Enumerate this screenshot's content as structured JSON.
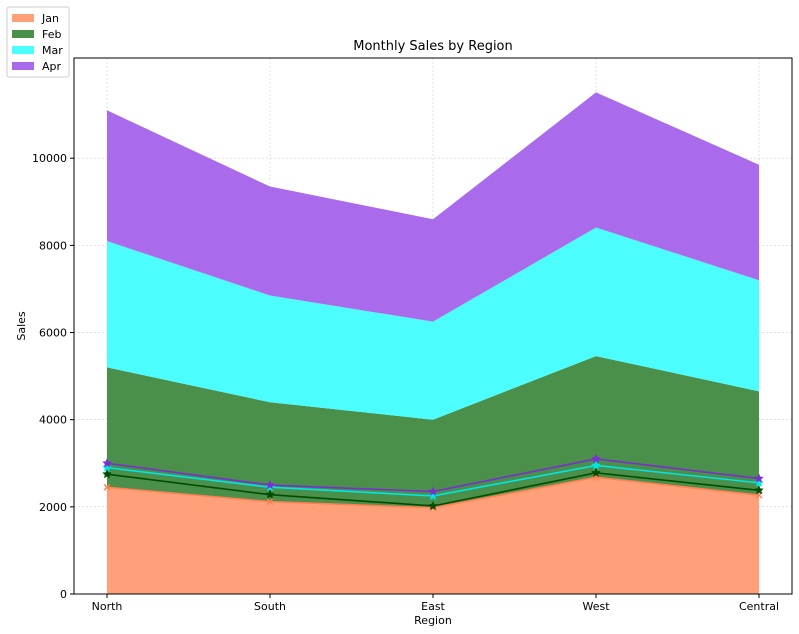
{
  "chart_data": {
    "type": "area",
    "stacked": true,
    "title": "Monthly Sales by Region",
    "xlabel": "Region",
    "ylabel": "Sales",
    "categories": [
      "North",
      "South",
      "East",
      "West",
      "Central"
    ],
    "ylim": [
      0,
      12300
    ],
    "yticks": [
      0,
      2000,
      4000,
      6000,
      8000,
      10000
    ],
    "ytick_labels": [
      "0",
      "2000",
      "4000",
      "6000",
      "8000",
      "10000"
    ],
    "grid": true,
    "legend_position": "top-left",
    "series": [
      {
        "name": "Jan",
        "values": [
          2450,
          2120,
          1980,
          2680,
          2270
        ],
        "color": "#ffa07a",
        "line_color": "#ff7f50",
        "marker": "x"
      },
      {
        "name": "Feb",
        "values": [
          2750,
          2280,
          2020,
          2780,
          2380
        ],
        "color": "#4a8f4a",
        "line_color": "#004d00",
        "marker": "star"
      },
      {
        "name": "Mar",
        "values": [
          2900,
          2450,
          2250,
          2950,
          2550
        ],
        "color": "#4cfdfd",
        "line_color": "#00e5e5",
        "marker": "star"
      },
      {
        "name": "Apr",
        "values": [
          3000,
          2500,
          2350,
          3100,
          2650
        ],
        "color": "#aa6aec",
        "line_color": "#7b2fd0",
        "marker": "star"
      }
    ]
  }
}
